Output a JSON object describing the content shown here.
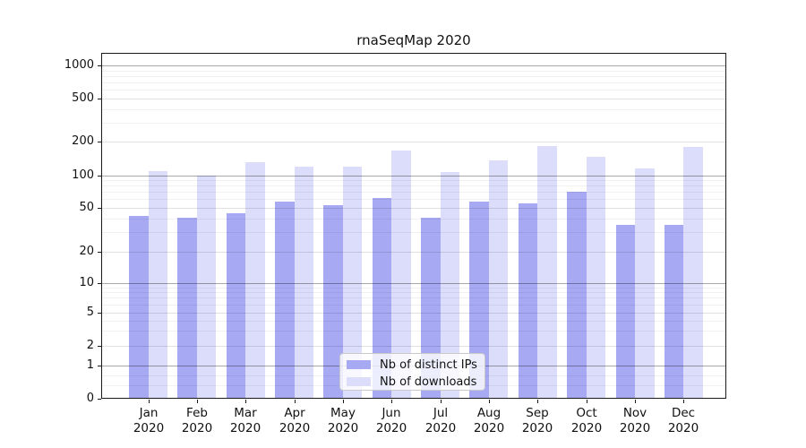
{
  "title": "rnaSeqMap 2020",
  "chart_data": {
    "type": "bar",
    "title": "rnaSeqMap 2020",
    "categories": [
      "Jan 2020",
      "Feb 2020",
      "Mar 2020",
      "Apr 2020",
      "May 2020",
      "Jun 2020",
      "Jul 2020",
      "Aug 2020",
      "Sep 2020",
      "Oct 2020",
      "Nov 2020",
      "Dec 2020"
    ],
    "series": [
      {
        "name": "Nb of distinct IPs",
        "color": "#a7a9f3",
        "values": [
          42,
          41,
          45,
          57,
          53,
          62,
          41,
          57,
          55,
          71,
          35,
          35
        ]
      },
      {
        "name": "Nb of downloads",
        "color": "#dcddfa",
        "values": [
          108,
          99,
          130,
          119,
          119,
          166,
          106,
          135,
          182,
          146,
          114,
          178
        ]
      }
    ],
    "yaxis": {
      "scale": "logarithmic-with-zero-baseline",
      "ticks": [
        0,
        1,
        2,
        5,
        10,
        20,
        50,
        100,
        200,
        500,
        1000
      ],
      "range_top": 1300,
      "emphasized_gridlines": [
        1,
        10,
        100,
        1000
      ]
    },
    "xlabel": "",
    "ylabel": "",
    "grid": true,
    "legend": {
      "position": "inside-bottom-center",
      "entries": [
        "Nb of distinct IPs",
        "Nb of downloads"
      ]
    }
  }
}
